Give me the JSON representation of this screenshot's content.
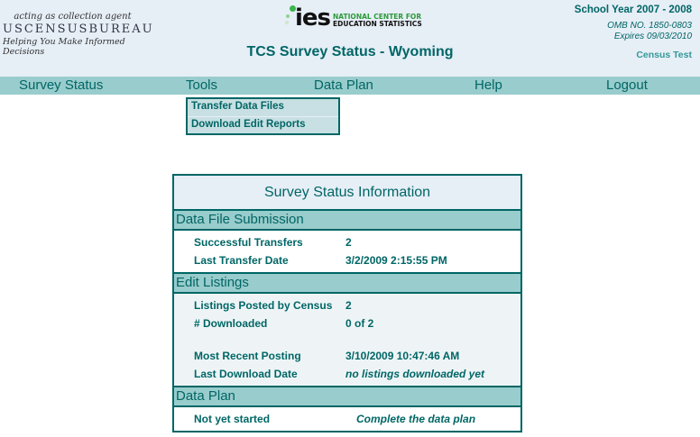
{
  "header": {
    "census": {
      "line1": "acting as collection agent",
      "line2": "USCENSUSBUREAU",
      "line3": "Helping You Make Informed Decisions"
    },
    "ies": {
      "logo": "ies",
      "line1": "NATIONAL CENTER FOR",
      "line2": "EDUCATION STATISTICS"
    },
    "title": "TCS Survey Status - Wyoming",
    "school_year": "School Year 2007 - 2008",
    "omb": "OMB NO. 1850-0803",
    "expires": "Expires 09/03/2010",
    "user": "Census Test"
  },
  "nav": [
    "Survey Status",
    "Tools",
    "Data Plan",
    "Help",
    "Logout"
  ],
  "tools_menu": [
    "Transfer Data Files",
    "Download Edit Reports"
  ],
  "status": {
    "title": "Survey Status Information",
    "sections": [
      {
        "heading": "Data File Submission",
        "rows": [
          {
            "label": "Successful Transfers",
            "value": "2"
          },
          {
            "label": "Last Transfer Date",
            "value": "3/2/2009 2:15:55 PM"
          }
        ]
      },
      {
        "heading": "Edit Listings",
        "rows": [
          {
            "label": "Listings Posted by Census",
            "value": "2"
          },
          {
            "label": "# Downloaded",
            "value": "0 of 2"
          },
          {
            "label": "Most Recent Posting",
            "value": "3/10/2009 10:47:46 AM"
          },
          {
            "label": "Last Download Date",
            "value": "no listings downloaded yet"
          }
        ]
      },
      {
        "heading": "Data Plan",
        "rows": [
          {
            "label": "Not yet started",
            "value": "Complete the data plan"
          }
        ]
      }
    ]
  },
  "colors": {
    "primary": "#006666",
    "nav": "#99cccc",
    "header_bg": "#e6eef6"
  }
}
